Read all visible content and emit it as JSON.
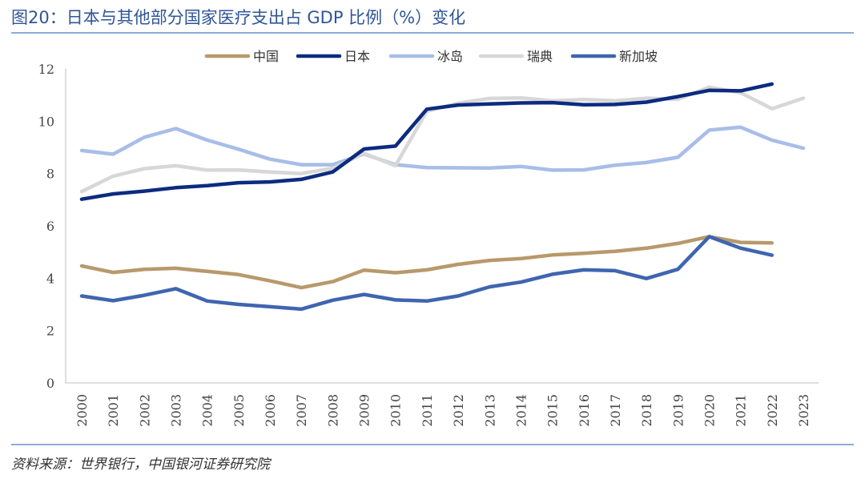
{
  "page": {
    "title": "图20：日本与其他部分国家医疗支出占 GDP 比例（%）变化",
    "source": "资料来源：世界银行，中国银河证券研究院"
  },
  "chart_data": {
    "type": "line",
    "title": "图20：日本与其他部分国家医疗支出占 GDP 比例（%）变化",
    "xlabel": "",
    "ylabel": "",
    "ylim": [
      0,
      12
    ],
    "yticks": [
      0,
      2,
      4,
      6,
      8,
      10,
      12
    ],
    "grid": false,
    "legend_position": "top-center",
    "categories": [
      "2000",
      "2001",
      "2002",
      "2003",
      "2004",
      "2005",
      "2006",
      "2007",
      "2008",
      "2009",
      "2010",
      "2011",
      "2012",
      "2013",
      "2014",
      "2015",
      "2016",
      "2017",
      "2018",
      "2019",
      "2020",
      "2021",
      "2022",
      "2023"
    ],
    "series": [
      {
        "name": "中国",
        "color": "#b8996b",
        "values": [
          4.47,
          4.22,
          4.34,
          4.38,
          4.26,
          4.14,
          3.9,
          3.64,
          3.87,
          4.31,
          4.21,
          4.32,
          4.53,
          4.68,
          4.75,
          4.89,
          4.95,
          5.03,
          5.15,
          5.33,
          5.59,
          5.37,
          5.35,
          null
        ]
      },
      {
        "name": "日本",
        "color": "#0c2b80",
        "values": [
          7.02,
          7.22,
          7.33,
          7.46,
          7.54,
          7.65,
          7.68,
          7.78,
          8.06,
          8.94,
          9.05,
          10.46,
          10.62,
          10.66,
          10.7,
          10.71,
          10.63,
          10.64,
          10.73,
          10.94,
          11.18,
          11.16,
          11.42,
          null
        ]
      },
      {
        "name": "冰岛",
        "color": "#a8bde8",
        "values": [
          8.88,
          8.74,
          9.39,
          9.72,
          9.28,
          8.93,
          8.55,
          8.34,
          8.34,
          8.75,
          8.34,
          8.23,
          8.22,
          8.21,
          8.27,
          8.13,
          8.14,
          8.32,
          8.42,
          8.62,
          9.66,
          9.77,
          9.28,
          8.97
        ]
      },
      {
        "name": "瑞典",
        "color": "#d7d7d7",
        "values": [
          7.31,
          7.9,
          8.19,
          8.3,
          8.13,
          8.14,
          8.06,
          8.0,
          8.2,
          8.77,
          8.3,
          10.38,
          10.69,
          10.87,
          10.89,
          10.78,
          10.83,
          10.78,
          10.88,
          10.84,
          11.3,
          11.09,
          10.48,
          10.88
        ]
      },
      {
        "name": "新加坡",
        "color": "#3f65b0",
        "values": [
          3.32,
          3.14,
          3.35,
          3.6,
          3.13,
          3.0,
          2.91,
          2.82,
          3.16,
          3.38,
          3.17,
          3.13,
          3.32,
          3.67,
          3.85,
          4.15,
          4.32,
          4.29,
          3.99,
          4.34,
          5.59,
          5.15,
          4.88,
          null
        ]
      }
    ]
  }
}
